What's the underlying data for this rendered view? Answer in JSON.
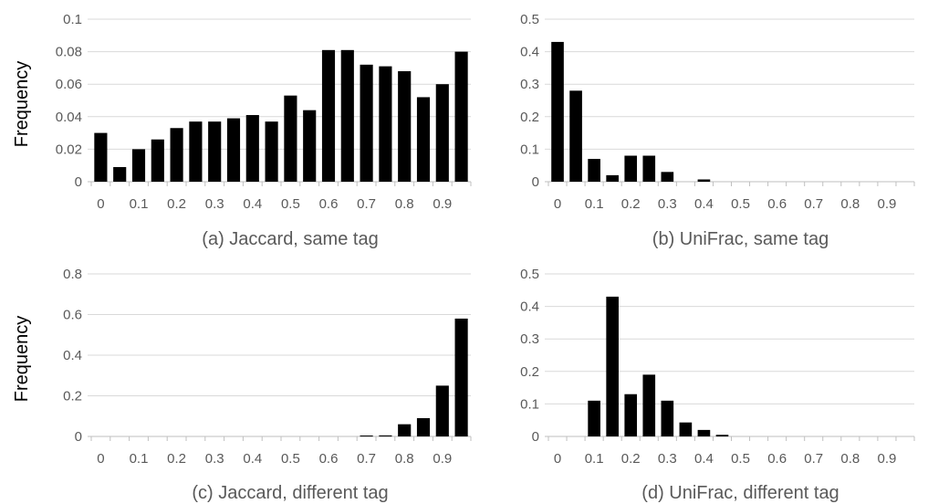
{
  "colors": {
    "bar": "#000000",
    "grid": "#d9d9d9",
    "axis": "#bfbfbf",
    "text": "#595959"
  },
  "chart_data": [
    {
      "type": "bar",
      "title": "(a) Jaccard, same tag",
      "ylabel": "Frequency",
      "xlabel": "",
      "ylim": [
        0,
        0.1
      ],
      "yticks": [
        "0",
        "0.02",
        "0.04",
        "0.06",
        "0.08",
        "0.1"
      ],
      "xtick_labels": [
        "0",
        "0.1",
        "0.2",
        "0.3",
        "0.4",
        "0.5",
        "0.6",
        "0.7",
        "0.8",
        "0.9"
      ],
      "categories": [
        0,
        0.05,
        0.1,
        0.15,
        0.2,
        0.25,
        0.3,
        0.35,
        0.4,
        0.45,
        0.5,
        0.55,
        0.6,
        0.65,
        0.7,
        0.75,
        0.8,
        0.85,
        0.9,
        0.95
      ],
      "values": [
        0.03,
        0.009,
        0.02,
        0.026,
        0.033,
        0.037,
        0.037,
        0.039,
        0.041,
        0.037,
        0.053,
        0.044,
        0.081,
        0.081,
        0.072,
        0.071,
        0.068,
        0.052,
        0.06,
        0.08
      ],
      "grid": true,
      "legend": "none"
    },
    {
      "type": "bar",
      "title": "(b) UniFrac, same tag",
      "ylabel": "",
      "xlabel": "",
      "ylim": [
        0,
        0.5
      ],
      "yticks": [
        "0",
        "0.1",
        "0.2",
        "0.3",
        "0.4",
        "0.5"
      ],
      "xtick_labels": [
        "0",
        "0.1",
        "0.2",
        "0.3",
        "0.4",
        "0.5",
        "0.6",
        "0.7",
        "0.8",
        "0.9"
      ],
      "categories": [
        0,
        0.05,
        0.1,
        0.15,
        0.2,
        0.25,
        0.3,
        0.35,
        0.4,
        0.45,
        0.5,
        0.55,
        0.6,
        0.65,
        0.7,
        0.75,
        0.8,
        0.85,
        0.9,
        0.95
      ],
      "values": [
        0.43,
        0.28,
        0.07,
        0.02,
        0.08,
        0.08,
        0.03,
        0.0,
        0.007,
        0,
        0,
        0,
        0,
        0,
        0,
        0,
        0,
        0,
        0,
        0
      ],
      "grid": true,
      "legend": "none"
    },
    {
      "type": "bar",
      "title": "(c) Jaccard, different tag",
      "ylabel": "Frequency",
      "xlabel": "",
      "ylim": [
        0,
        0.8
      ],
      "yticks": [
        "0",
        "0.2",
        "0.4",
        "0.6",
        "0.8"
      ],
      "xtick_labels": [
        "0",
        "0.1",
        "0.2",
        "0.3",
        "0.4",
        "0.5",
        "0.6",
        "0.7",
        "0.8",
        "0.9"
      ],
      "categories": [
        0,
        0.05,
        0.1,
        0.15,
        0.2,
        0.25,
        0.3,
        0.35,
        0.4,
        0.45,
        0.5,
        0.55,
        0.6,
        0.65,
        0.7,
        0.75,
        0.8,
        0.85,
        0.9,
        0.95
      ],
      "values": [
        0,
        0,
        0,
        0,
        0,
        0,
        0,
        0,
        0,
        0,
        0,
        0,
        0,
        0,
        0.001,
        0.005,
        0.06,
        0.09,
        0.25,
        0.58
      ],
      "grid": true,
      "legend": "none"
    },
    {
      "type": "bar",
      "title": "(d) UniFrac, different tag",
      "ylabel": "",
      "xlabel": "",
      "ylim": [
        0,
        0.5
      ],
      "yticks": [
        "0",
        "0.1",
        "0.2",
        "0.3",
        "0.4",
        "0.5"
      ],
      "xtick_labels": [
        "0",
        "0.1",
        "0.2",
        "0.3",
        "0.4",
        "0.5",
        "0.6",
        "0.7",
        "0.8",
        "0.9"
      ],
      "categories": [
        0,
        0.05,
        0.1,
        0.15,
        0.2,
        0.25,
        0.3,
        0.35,
        0.4,
        0.45,
        0.5,
        0.55,
        0.6,
        0.65,
        0.7,
        0.75,
        0.8,
        0.85,
        0.9,
        0.95
      ],
      "values": [
        0,
        0,
        0.11,
        0.43,
        0.13,
        0.19,
        0.11,
        0.043,
        0.02,
        0.005,
        0,
        0,
        0,
        0,
        0,
        0,
        0,
        0,
        0,
        0
      ],
      "grid": true,
      "legend": "none"
    }
  ]
}
